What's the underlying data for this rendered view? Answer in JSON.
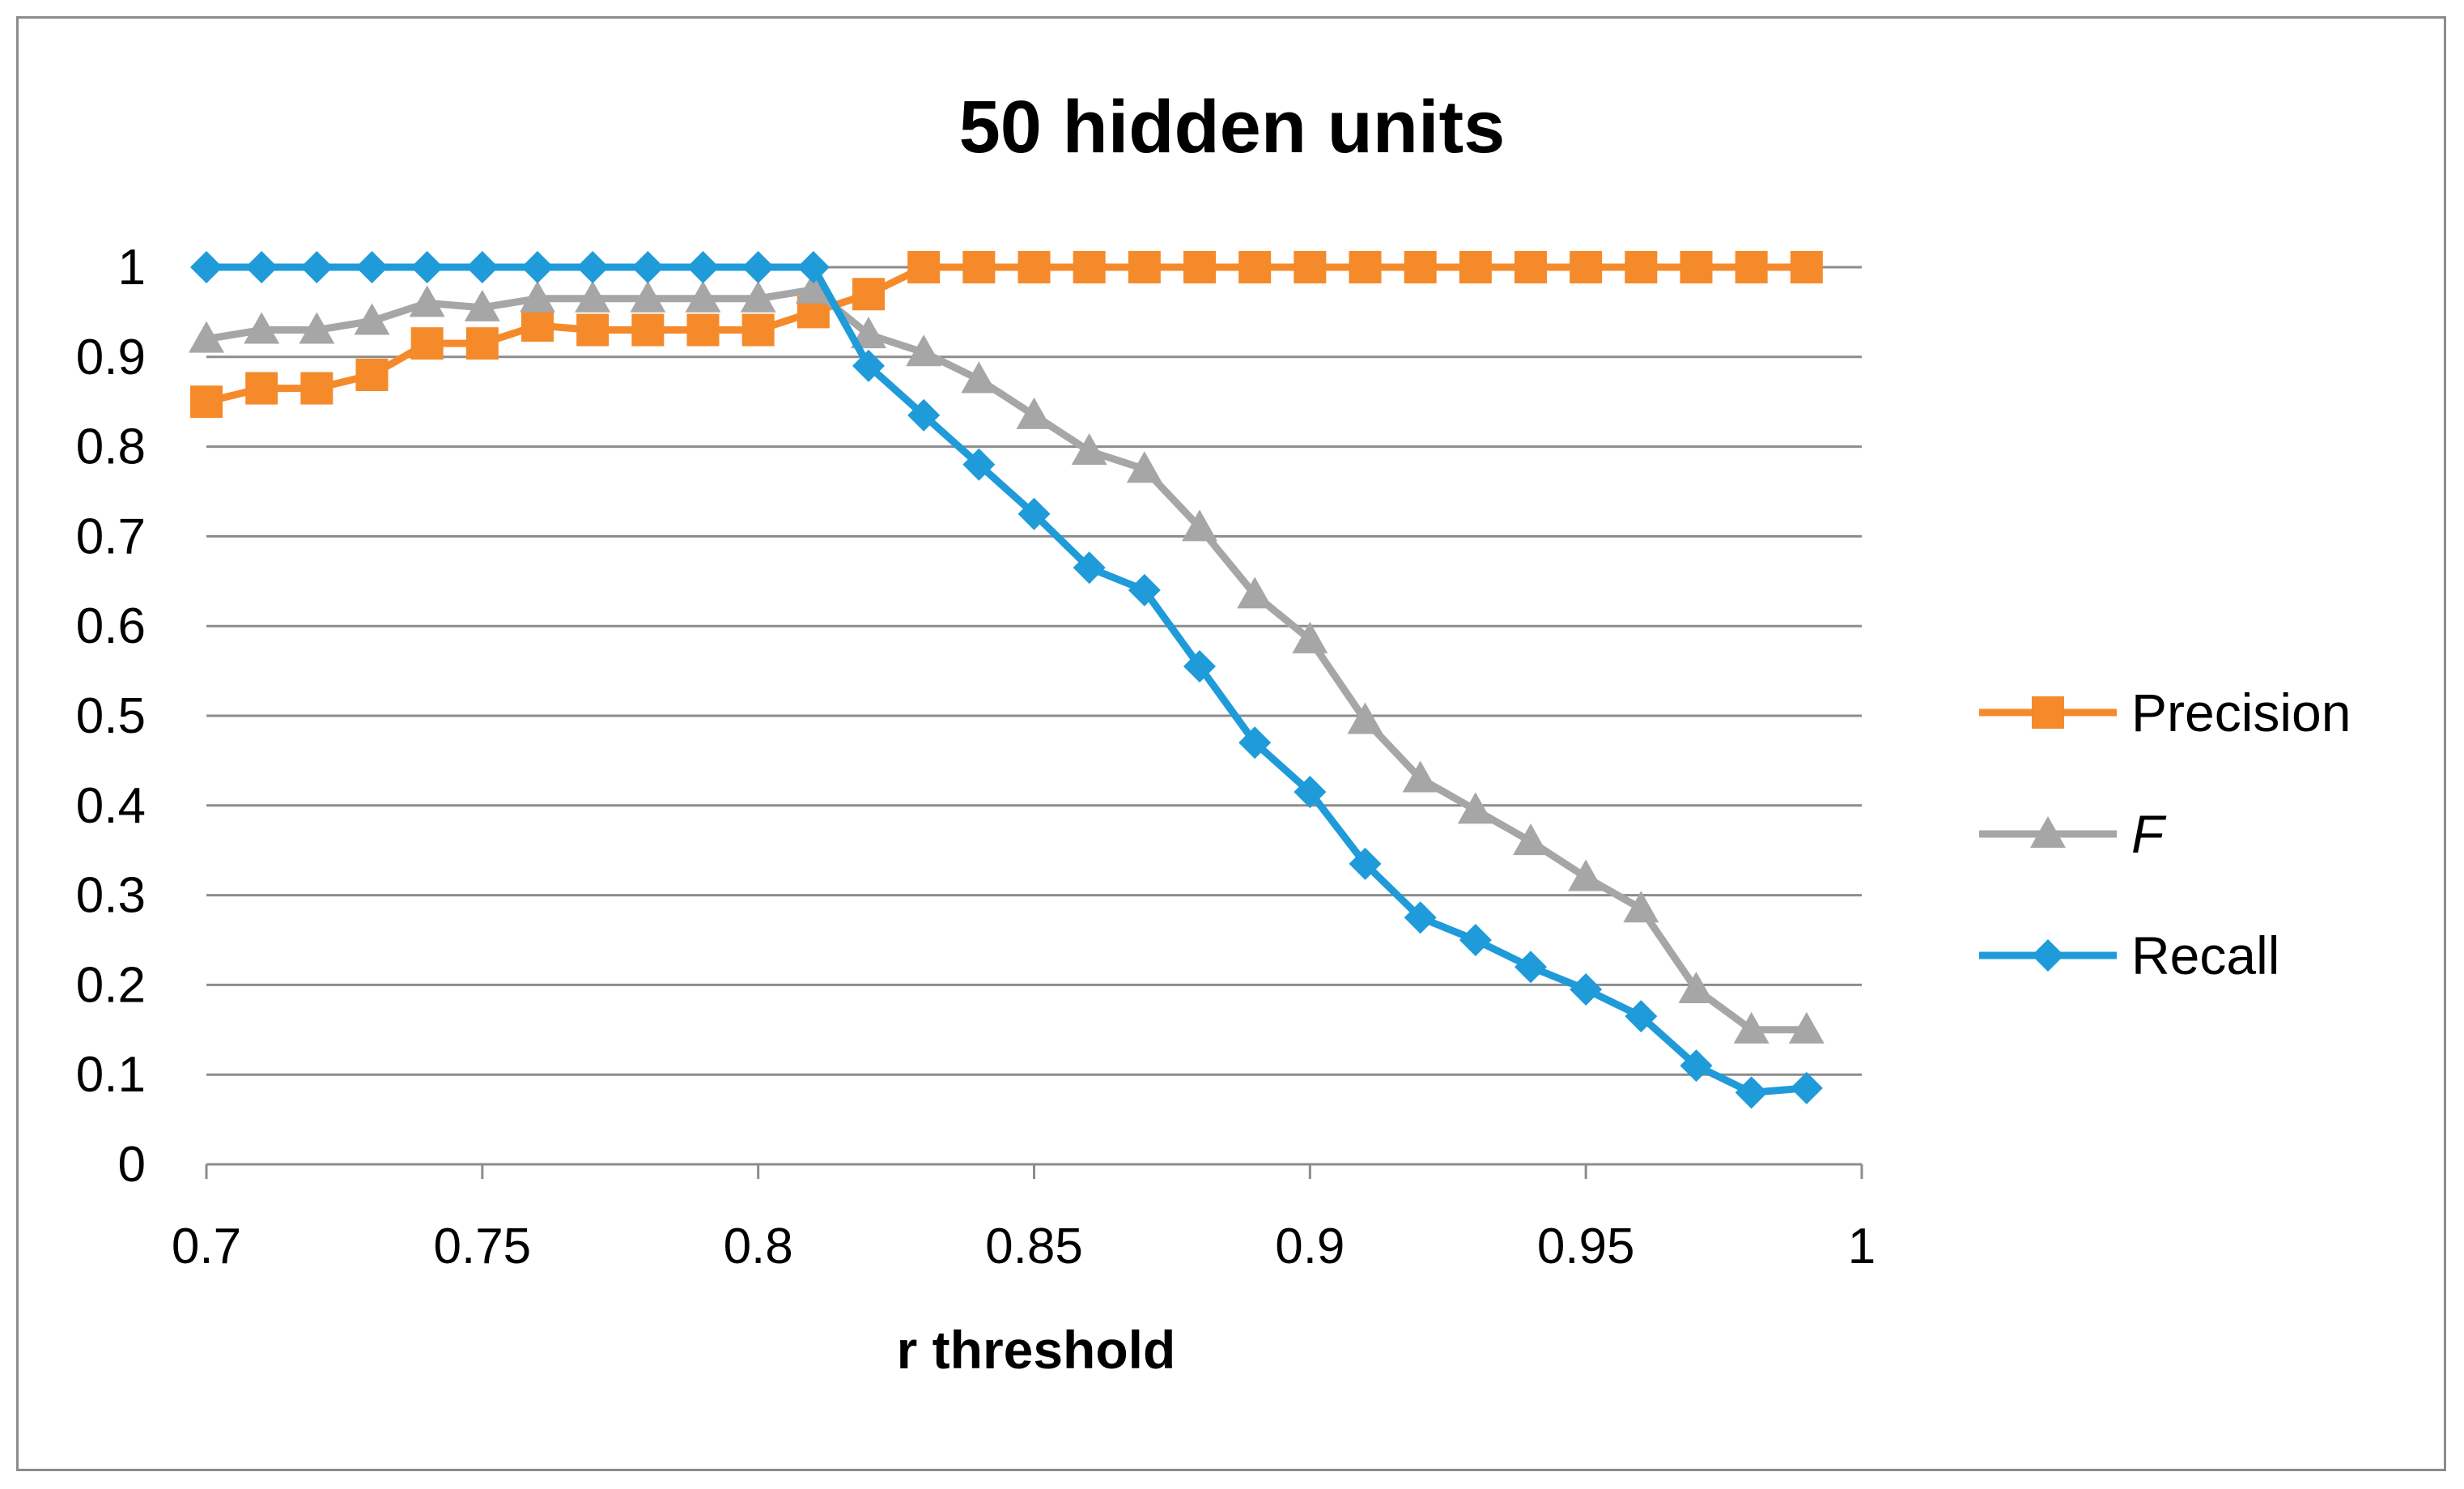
{
  "chart_data": {
    "type": "line",
    "title": "50 hidden units",
    "xlabel": "r threshold",
    "ylabel": "",
    "xlim": [
      0.7,
      1
    ],
    "ylim": [
      0,
      1
    ],
    "x_ticks": [
      "0.7",
      "0.75",
      "0.8",
      "0.85",
      "0.9",
      "0.95",
      "1"
    ],
    "y_ticks": [
      "0",
      "0.1",
      "0.2",
      "0.3",
      "0.4",
      "0.5",
      "0.6",
      "0.7",
      "0.8",
      "0.9",
      "1"
    ],
    "grid": "horizontal",
    "legend_position": "right",
    "x": [
      0.7,
      0.71,
      0.72,
      0.73,
      0.74,
      0.75,
      0.76,
      0.77,
      0.78,
      0.79,
      0.8,
      0.81,
      0.82,
      0.83,
      0.84,
      0.85,
      0.86,
      0.87,
      0.88,
      0.89,
      0.9,
      0.91,
      0.92,
      0.93,
      0.94,
      0.95,
      0.96,
      0.97,
      0.98,
      0.99
    ],
    "series": [
      {
        "name": "Precision",
        "color": "#f58a2b",
        "marker": "square",
        "values": [
          0.85,
          0.865,
          0.865,
          0.88,
          0.915,
          0.915,
          0.935,
          0.93,
          0.93,
          0.93,
          0.93,
          0.95,
          0.97,
          1,
          1,
          1,
          1,
          1,
          1,
          1,
          1,
          1,
          1,
          1,
          1,
          1,
          1,
          1,
          1,
          1
        ]
      },
      {
        "name": "F",
        "color": "#a6a6a6",
        "marker": "triangle",
        "italic": true,
        "values": [
          0.92,
          0.93,
          0.93,
          0.94,
          0.96,
          0.955,
          0.965,
          0.965,
          0.965,
          0.965,
          0.965,
          0.975,
          0.925,
          0.905,
          0.875,
          0.835,
          0.795,
          0.775,
          0.71,
          0.635,
          0.585,
          0.495,
          0.43,
          0.395,
          0.36,
          0.32,
          0.285,
          0.195,
          0.15,
          0.15
        ]
      },
      {
        "name": "Recall",
        "color": "#1f9bd9",
        "marker": "diamond",
        "values": [
          1,
          1,
          1,
          1,
          1,
          1,
          1,
          1,
          1,
          1,
          1,
          1,
          0.89,
          0.835,
          0.78,
          0.725,
          0.665,
          0.64,
          0.555,
          0.47,
          0.415,
          0.335,
          0.275,
          0.25,
          0.22,
          0.195,
          0.165,
          0.11,
          0.08,
          0.085
        ]
      }
    ]
  }
}
